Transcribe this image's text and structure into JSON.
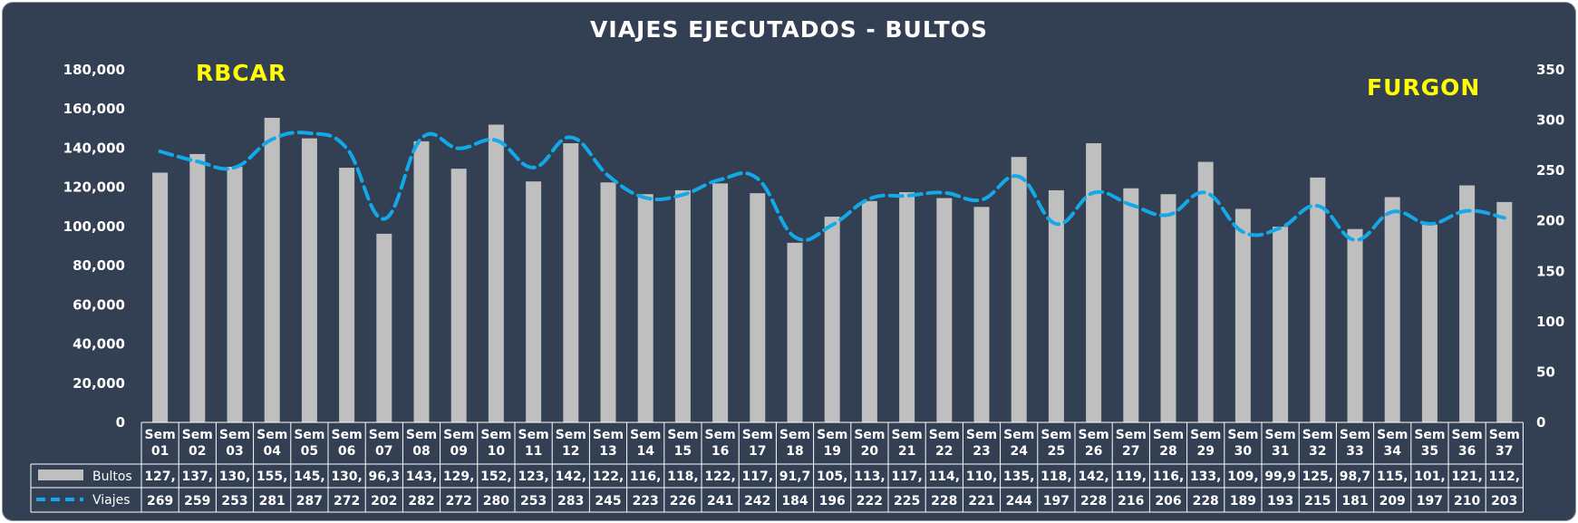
{
  "chart_data": {
    "type": "bar+line",
    "title": "VIAJES EJECUTADOS - BULTOS",
    "annotations": {
      "left": "RBCAR",
      "right": "FURGON"
    },
    "categories": [
      "Sem 01",
      "Sem 02",
      "Sem 03",
      "Sem 04",
      "Sem 05",
      "Sem 06",
      "Sem 07",
      "Sem 08",
      "Sem 09",
      "Sem 10",
      "Sem 11",
      "Sem 12",
      "Sem 13",
      "Sem 14",
      "Sem 15",
      "Sem 16",
      "Sem 17",
      "Sem 18",
      "Sem 19",
      "Sem 20",
      "Sem 21",
      "Sem 22",
      "Sem 23",
      "Sem 24",
      "Sem 25",
      "Sem 26",
      "Sem 27",
      "Sem 28",
      "Sem 29",
      "Sem 30",
      "Sem 31",
      "Sem 32",
      "Sem 33",
      "Sem 34",
      "Sem 35",
      "Sem 36",
      "Sem 37"
    ],
    "y_left": {
      "min": 0,
      "max": 180000,
      "step": 20000,
      "ticks": [
        "0",
        "20,000",
        "40,000",
        "60,000",
        "80,000",
        "100,000",
        "120,000",
        "140,000",
        "160,000",
        "180,000"
      ]
    },
    "y_right": {
      "min": 0,
      "max": 350,
      "step": 50,
      "ticks": [
        "0",
        "50",
        "100",
        "150",
        "200",
        "250",
        "300",
        "350"
      ]
    },
    "series": [
      {
        "name": "Bultos",
        "type": "bar",
        "axis": "left",
        "color": "#bfbfbf",
        "values": [
          127500,
          137000,
          130500,
          155500,
          145000,
          130000,
          96300,
          143500,
          129500,
          152000,
          123000,
          142500,
          122500,
          116500,
          118500,
          122000,
          117000,
          91700,
          105000,
          113000,
          117500,
          114500,
          110000,
          135500,
          118500,
          142500,
          119500,
          116500,
          133000,
          109000,
          99900,
          125000,
          98700,
          115000,
          101000,
          121000,
          112500
        ],
        "labels": [
          "127,",
          "137,",
          "130,",
          "155,",
          "145,",
          "130,",
          "96,3",
          "143,",
          "129,",
          "152,",
          "123,",
          "142,",
          "122,",
          "116,",
          "118,",
          "122,",
          "117,",
          "91,7",
          "105,",
          "113,",
          "117,",
          "114,",
          "110,",
          "135,",
          "118,",
          "142,",
          "119,",
          "116,",
          "133,",
          "109,",
          "99,9",
          "125,",
          "98,7",
          "115,",
          "101,",
          "121,",
          "112,"
        ]
      },
      {
        "name": "Viajes",
        "type": "line",
        "style": "dashed",
        "axis": "right",
        "color": "#13a9e8",
        "values": [
          269,
          259,
          253,
          281,
          287,
          272,
          202,
          282,
          272,
          280,
          253,
          283,
          245,
          223,
          226,
          241,
          242,
          184,
          196,
          222,
          225,
          228,
          221,
          244,
          197,
          228,
          216,
          206,
          228,
          189,
          193,
          215,
          181,
          209,
          197,
          210,
          203
        ],
        "labels": [
          "269",
          "259",
          "253",
          "281",
          "287",
          "272",
          "202",
          "282",
          "272",
          "280",
          "253",
          "283",
          "245",
          "223",
          "226",
          "241",
          "242",
          "184",
          "196",
          "222",
          "225",
          "228",
          "221",
          "244",
          "197",
          "228",
          "216",
          "206",
          "228",
          "189",
          "193",
          "215",
          "181",
          "209",
          "197",
          "210",
          "203"
        ]
      }
    ],
    "grid": false,
    "data_table": true
  },
  "colors": {
    "background": "#333f52",
    "text": "#ffffff",
    "annotation": "#ffff00"
  }
}
